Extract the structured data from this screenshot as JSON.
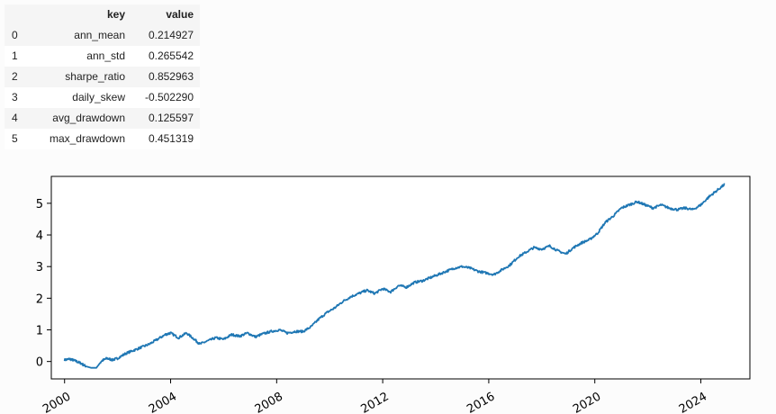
{
  "table": {
    "headers": {
      "index": "",
      "key": "key",
      "value": "value"
    },
    "rows": [
      {
        "index": "0",
        "key": "ann_mean",
        "value": "0.214927"
      },
      {
        "index": "1",
        "key": "ann_std",
        "value": "0.265542"
      },
      {
        "index": "2",
        "key": "sharpe_ratio",
        "value": "0.852963"
      },
      {
        "index": "3",
        "key": "daily_skew",
        "value": "-0.502290"
      },
      {
        "index": "4",
        "key": "avg_drawdown",
        "value": "0.125597"
      },
      {
        "index": "5",
        "key": "max_drawdown",
        "value": "0.451319"
      }
    ]
  },
  "chart_data": {
    "type": "line",
    "title": "",
    "xlabel": "",
    "ylabel": "",
    "xlim": [
      1999.5,
      2025.85
    ],
    "ylim": [
      -0.55,
      5.85
    ],
    "yticks": [
      0,
      1,
      2,
      3,
      4,
      5
    ],
    "xticks": [
      "2000",
      "2004",
      "2008",
      "2012",
      "2016",
      "2020",
      "2024"
    ],
    "grid": false,
    "legend": "none",
    "line_color": "#1f77b4",
    "series": [
      {
        "x": [
          2000.0,
          2000.2,
          2000.4,
          2000.6,
          2000.8,
          2001.0,
          2001.2,
          2001.4,
          2001.6,
          2001.8,
          2002.0,
          2002.3,
          2002.6,
          2002.9,
          2003.2,
          2003.5,
          2003.8,
          2004.0,
          2004.3,
          2004.6,
          2004.9,
          2005.1,
          2005.4,
          2005.7,
          2006.0,
          2006.3,
          2006.6,
          2006.9,
          2007.2,
          2007.5,
          2007.8,
          2008.1,
          2008.4,
          2008.7,
          2009.0,
          2009.3,
          2009.6,
          2009.9,
          2010.2,
          2010.5,
          2010.8,
          2011.1,
          2011.4,
          2011.7,
          2012.0,
          2012.3,
          2012.6,
          2012.9,
          2013.2,
          2013.5,
          2013.8,
          2014.1,
          2014.4,
          2014.7,
          2015.0,
          2015.3,
          2015.6,
          2015.9,
          2016.2,
          2016.5,
          2016.8,
          2017.1,
          2017.4,
          2017.7,
          2018.0,
          2018.3,
          2018.6,
          2018.9,
          2019.2,
          2019.5,
          2019.8,
          2020.1,
          2020.4,
          2020.7,
          2021.0,
          2021.3,
          2021.6,
          2021.9,
          2022.2,
          2022.5,
          2022.8,
          2023.1,
          2023.4,
          2023.7,
          2024.0,
          2024.3,
          2024.6,
          2024.9
        ],
        "values": [
          0.05,
          0.08,
          0.02,
          -0.05,
          -0.15,
          -0.2,
          -0.2,
          0.02,
          0.1,
          0.05,
          0.1,
          0.25,
          0.35,
          0.45,
          0.55,
          0.7,
          0.85,
          0.9,
          0.75,
          0.9,
          0.7,
          0.55,
          0.65,
          0.75,
          0.7,
          0.85,
          0.8,
          0.9,
          0.78,
          0.88,
          0.95,
          1.0,
          0.9,
          0.95,
          0.95,
          1.1,
          1.35,
          1.55,
          1.7,
          1.9,
          2.05,
          2.15,
          2.25,
          2.15,
          2.3,
          2.2,
          2.4,
          2.35,
          2.5,
          2.55,
          2.65,
          2.75,
          2.85,
          2.95,
          3.0,
          2.95,
          2.85,
          2.8,
          2.75,
          2.9,
          3.05,
          3.3,
          3.45,
          3.6,
          3.55,
          3.65,
          3.5,
          3.4,
          3.6,
          3.75,
          3.85,
          4.05,
          4.4,
          4.6,
          4.85,
          4.95,
          5.05,
          4.95,
          4.85,
          4.95,
          4.85,
          4.8,
          4.85,
          4.8,
          4.95,
          5.2,
          5.4,
          5.6
        ]
      }
    ]
  }
}
